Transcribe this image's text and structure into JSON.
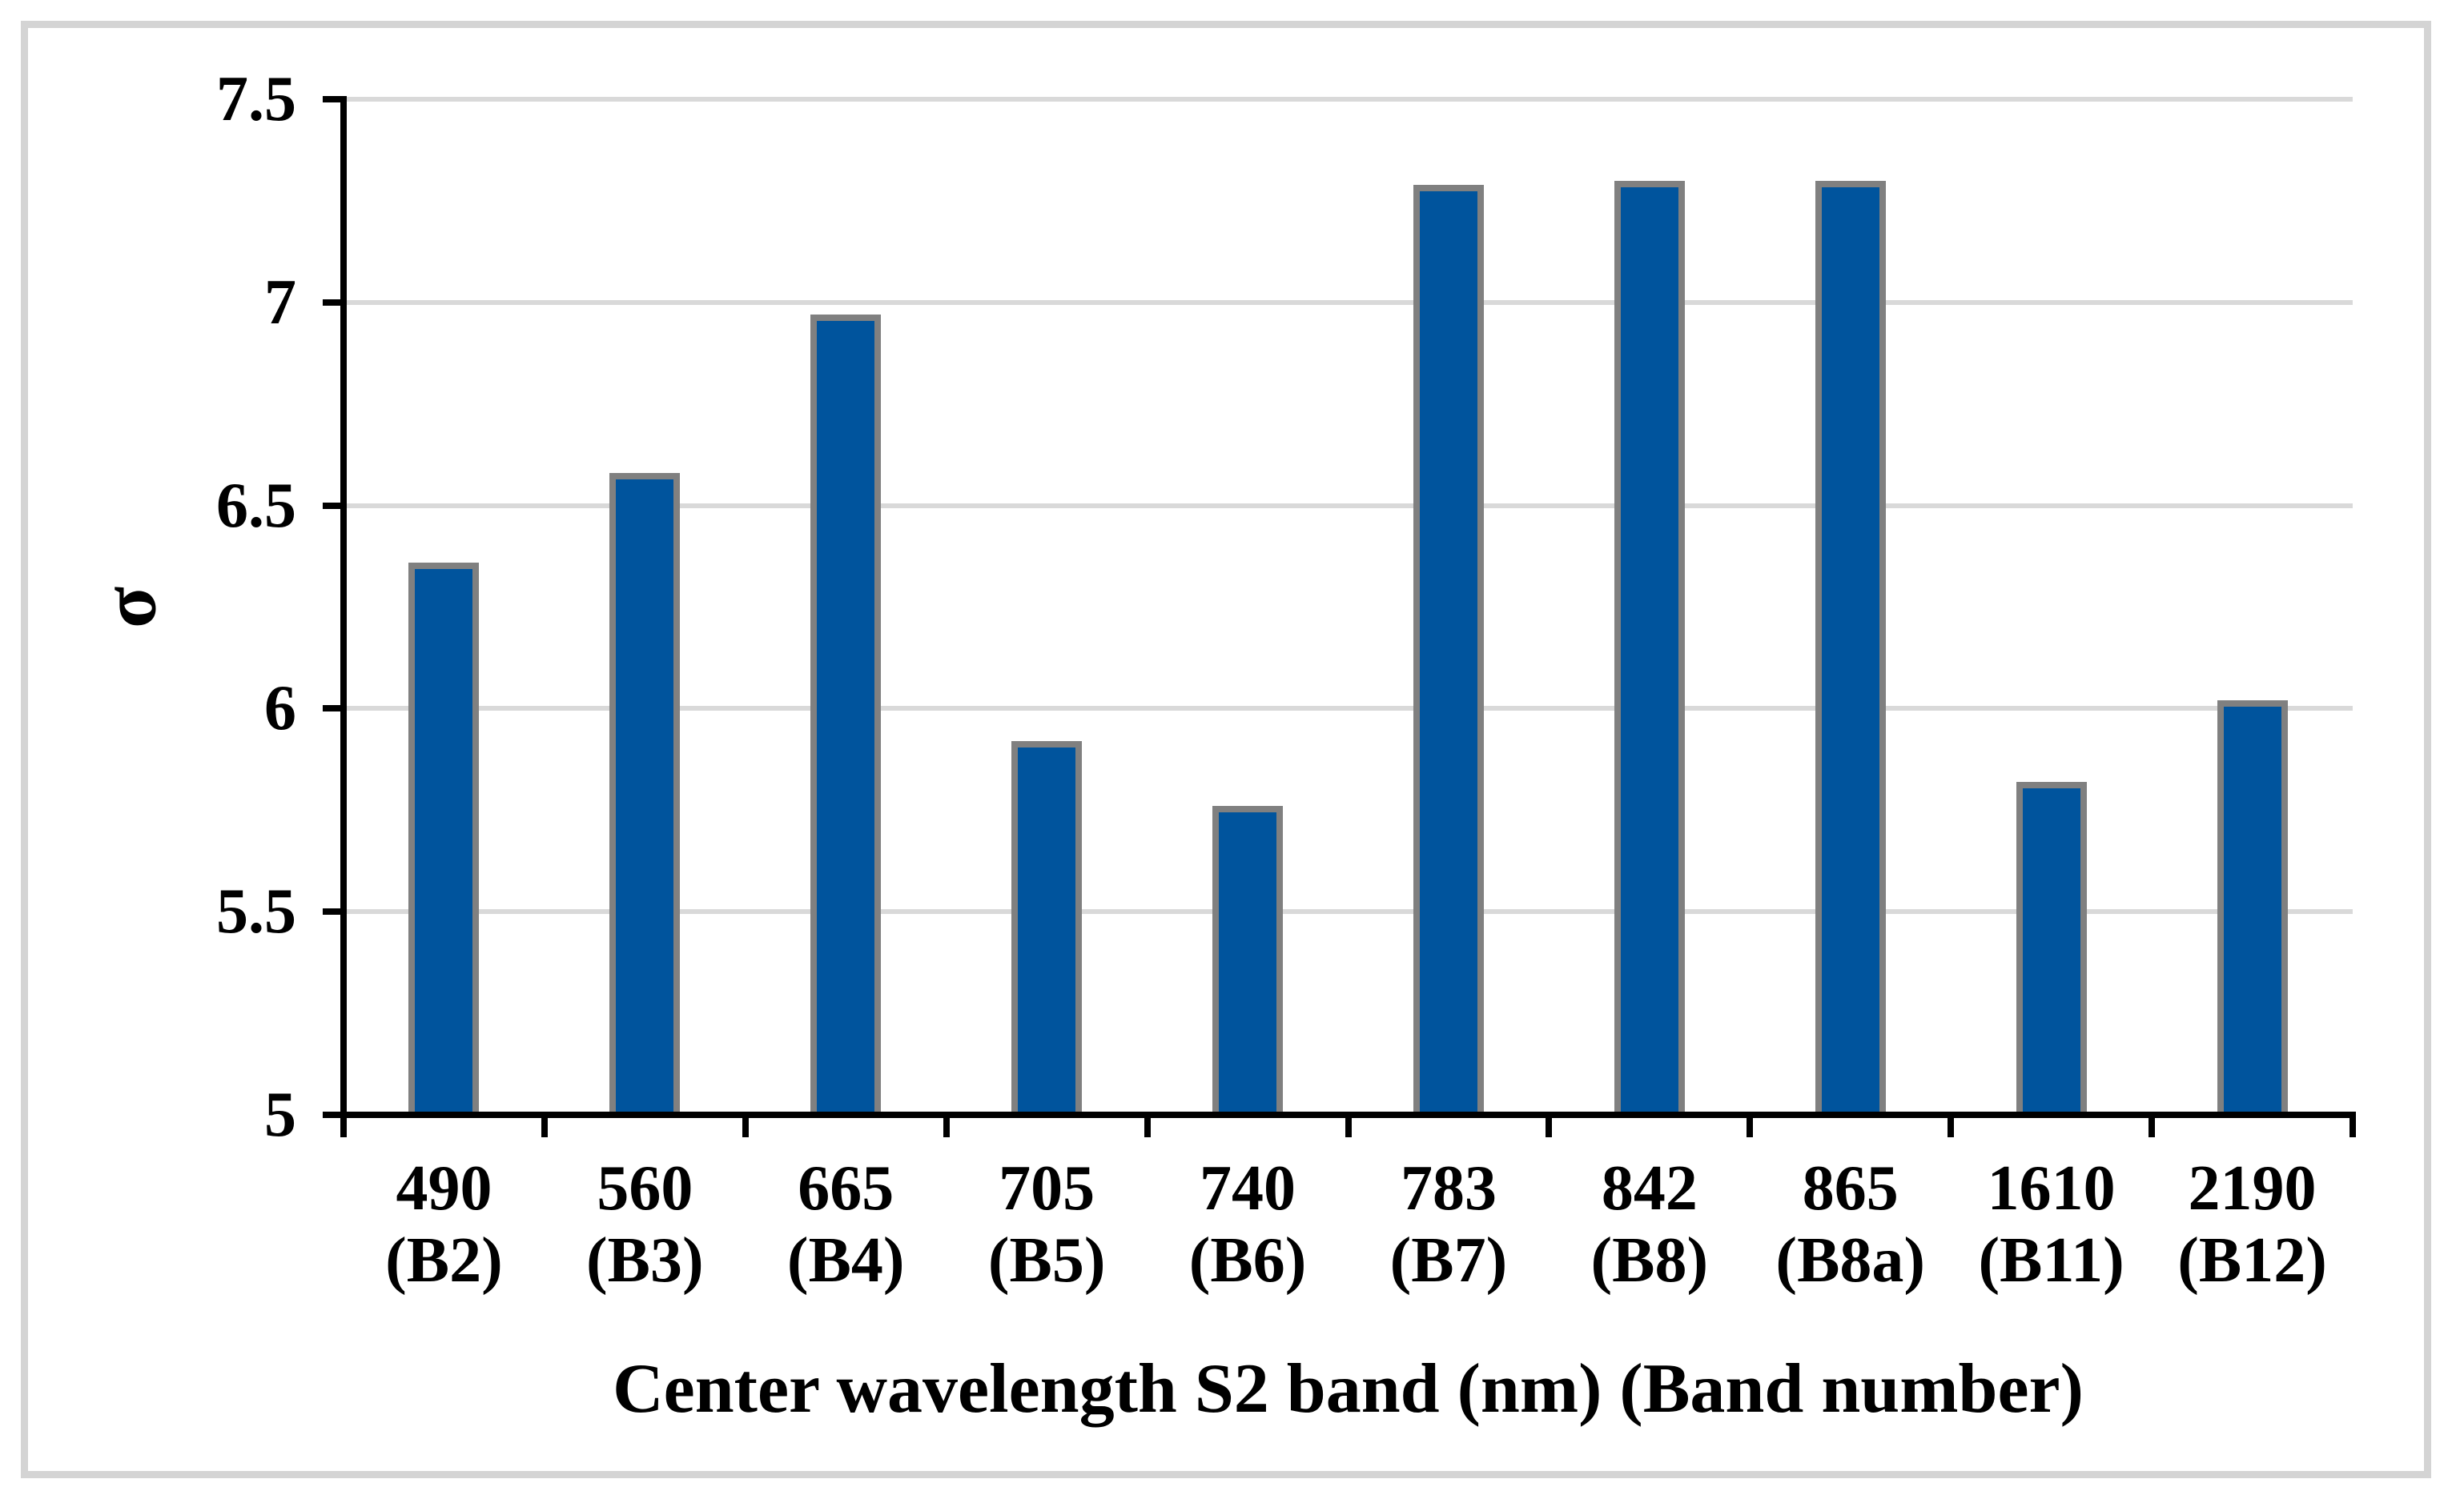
{
  "figure": {
    "background": "#ffffff",
    "frame_color": "#d4d4d4"
  },
  "chart_data": {
    "type": "bar",
    "title": "",
    "xlabel": "Center wavelength S2 band (nm) (Band number)",
    "ylabel": "σ",
    "ylim": [
      5,
      7.5
    ],
    "grid": true,
    "legend": false,
    "gridline_color": "#d9d9d9",
    "axis_color": "#000000",
    "bar_color": "#00549d",
    "bar_border_color": "#808080",
    "yticks": [
      {
        "label": "7.5",
        "value": 7.5
      },
      {
        "label": "7",
        "value": 7.0
      },
      {
        "label": "6.5",
        "value": 6.5
      },
      {
        "label": "6",
        "value": 6.0
      },
      {
        "label": "5.5",
        "value": 5.5
      },
      {
        "label": "5",
        "value": 5.0
      }
    ],
    "categories": [
      {
        "wavelength": "490",
        "band": "(B2)"
      },
      {
        "wavelength": "560",
        "band": "(B3)"
      },
      {
        "wavelength": "665",
        "band": "(B4)"
      },
      {
        "wavelength": "705",
        "band": "(B5)"
      },
      {
        "wavelength": "740",
        "band": "(B6)"
      },
      {
        "wavelength": "783",
        "band": "(B7)"
      },
      {
        "wavelength": "842",
        "band": "(B8)"
      },
      {
        "wavelength": "865",
        "band": "(B8a)"
      },
      {
        "wavelength": "1610",
        "band": "(B11)"
      },
      {
        "wavelength": "2190",
        "band": "(B12)"
      }
    ],
    "values": [
      6.36,
      6.58,
      6.97,
      5.92,
      5.76,
      7.29,
      7.3,
      7.3,
      5.82,
      6.02
    ]
  }
}
